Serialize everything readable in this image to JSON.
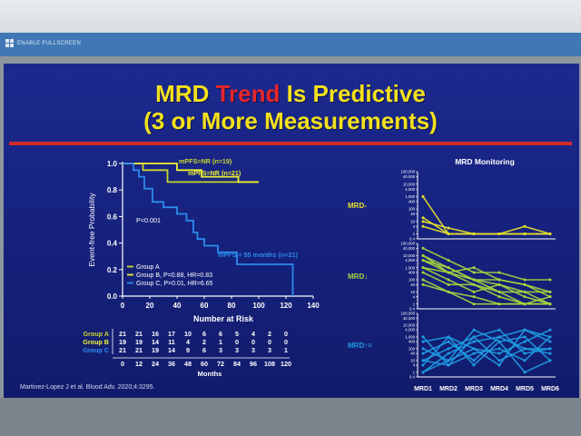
{
  "toolbar": {
    "fullscreen_label": "ENABLE FULLSCREEN"
  },
  "slide": {
    "title_part1": "MRD ",
    "title_highlight": "Trend",
    "title_part2": " Is Predictive",
    "title_line2": "(3 or More Measurements)",
    "citation": "Martinez-Lopez J et al. Blood Adv. 2020;4:3295."
  },
  "chart_data": [
    {
      "type": "line",
      "ylabel": "Event-free Probability",
      "xlabel": "Number at Risk",
      "xlim": [
        0,
        140
      ],
      "ylim": [
        0,
        1.0
      ],
      "x_ticks": [
        "0",
        "20",
        "40",
        "60",
        "80",
        "100",
        "120",
        "140"
      ],
      "y_ticks": [
        "0.0",
        "0.2",
        "0.4",
        "0.6",
        "0.8",
        "1.0"
      ],
      "annotations": [
        "mPFS=NR (n=19)",
        "mPFS=NR (n=21)",
        "mPFS = 55 months (n=21)",
        "P<0.001"
      ],
      "legend": [
        "Group A",
        "Group B, P=0.88, HR=0.83",
        "Group C, P=0.01, HR=6.65"
      ],
      "colors": {
        "A": "#c9d72d",
        "B": "#eef231",
        "C": "#2c8bea"
      },
      "series": [
        {
          "name": "Group A",
          "x": [
            0,
            15,
            15,
            33,
            33,
            100
          ],
          "y": [
            1.0,
            1.0,
            0.95,
            0.95,
            0.86,
            0.86
          ]
        },
        {
          "name": "Group B",
          "x": [
            0,
            40,
            40,
            58,
            58,
            85,
            85,
            100
          ],
          "y": [
            1.0,
            1.0,
            0.95,
            0.95,
            0.9,
            0.9,
            0.86,
            0.86
          ]
        },
        {
          "name": "Group C",
          "x": [
            0,
            8,
            8,
            12,
            12,
            16,
            16,
            22,
            22,
            30,
            30,
            40,
            40,
            47,
            47,
            52,
            52,
            55,
            55,
            60,
            60,
            70,
            70,
            84,
            84,
            125,
            125
          ],
          "y": [
            1.0,
            1.0,
            0.95,
            0.95,
            0.9,
            0.9,
            0.81,
            0.81,
            0.71,
            0.71,
            0.67,
            0.67,
            0.62,
            0.62,
            0.57,
            0.57,
            0.48,
            0.48,
            0.43,
            0.43,
            0.38,
            0.38,
            0.33,
            0.33,
            0.24,
            0.24,
            0.0
          ]
        }
      ],
      "risk_table": {
        "months_label": "Months",
        "times": [
          "0",
          "12",
          "24",
          "36",
          "48",
          "60",
          "72",
          "84",
          "96",
          "108",
          "120"
        ],
        "rows": [
          {
            "group": "Group A",
            "counts": [
              "21",
              "21",
              "16",
              "17",
              "10",
              "6",
              "6",
              "5",
              "4",
              "2",
              "0"
            ]
          },
          {
            "group": "Group B",
            "counts": [
              "19",
              "19",
              "14",
              "11",
              "4",
              "2",
              "1",
              "0",
              "0",
              "0",
              "0"
            ]
          },
          {
            "group": "Group C",
            "counts": [
              "21",
              "21",
              "19",
              "14",
              "9",
              "6",
              "3",
              "3",
              "3",
              "3",
              "1"
            ]
          }
        ]
      }
    },
    {
      "type": "line",
      "title": "MRD Monitoring",
      "categories": [
        "MRD1",
        "MRD2",
        "MRD3",
        "MRD4",
        "MRD5",
        "MRD6"
      ],
      "y_ticks": [
        "100,000",
        "40,000",
        "10,000",
        "4,000",
        "1,000",
        "400",
        "100",
        "40",
        "10",
        "4",
        "1",
        "0.4"
      ],
      "panels": [
        {
          "label": "MRD-",
          "color": "#e8e22a",
          "series": [
            {
              "values": [
                1000,
                1,
                1,
                1,
                1,
                1
              ]
            },
            {
              "values": [
                20,
                1,
                1,
                1,
                4,
                1
              ]
            },
            {
              "values": [
                10,
                3,
                1,
                1,
                1,
                1
              ]
            },
            {
              "values": [
                4,
                1,
                1,
                1,
                1,
                1
              ]
            }
          ]
        },
        {
          "label": "MRD↓",
          "color": "#a9d63c",
          "series": [
            {
              "values": [
                40000,
                4000,
                400,
                400,
                100,
                100
              ]
            },
            {
              "values": [
                10000,
                1000,
                100,
                40,
                10,
                10
              ]
            },
            {
              "values": [
                4000,
                400,
                1000,
                100,
                40,
                4
              ]
            },
            {
              "values": [
                1000,
                100,
                10,
                40,
                4,
                1
              ]
            },
            {
              "values": [
                400,
                40,
                40,
                10,
                1,
                1
              ]
            },
            {
              "values": [
                100,
                10,
                4,
                1,
                1,
                4
              ]
            },
            {
              "values": [
                40,
                10,
                1,
                1,
                1,
                1
              ]
            },
            {
              "values": [
                4000,
                1000,
                100,
                10,
                10,
                1
              ]
            },
            {
              "values": [
                1000,
                400,
                40,
                4,
                1,
                1
              ]
            },
            {
              "values": [
                10000,
                400,
                100,
                100,
                40,
                10
              ]
            }
          ]
        },
        {
          "label": "MRD↑=",
          "color": "#1f9de3",
          "series": [
            {
              "values": [
                10,
                100,
                1000,
                4000,
                40,
                100
              ]
            },
            {
              "values": [
                1,
                40,
                400,
                1000,
                4000,
                1000
              ]
            },
            {
              "values": [
                100,
                10,
                4000,
                400,
                1000,
                10
              ]
            },
            {
              "values": [
                4,
                1000,
                100,
                40,
                400,
                4000
              ]
            },
            {
              "values": [
                1000,
                4,
                40,
                100,
                10,
                1000
              ]
            },
            {
              "values": [
                40,
                400,
                10,
                1000,
                100,
                40
              ]
            },
            {
              "values": [
                1,
                10,
                100,
                4,
                4000,
                400
              ]
            },
            {
              "values": [
                400,
                1000,
                4,
                400,
                1,
                10
              ]
            },
            {
              "values": [
                10,
                4,
                1000,
                10,
                100,
                100
              ]
            }
          ]
        }
      ]
    }
  ]
}
